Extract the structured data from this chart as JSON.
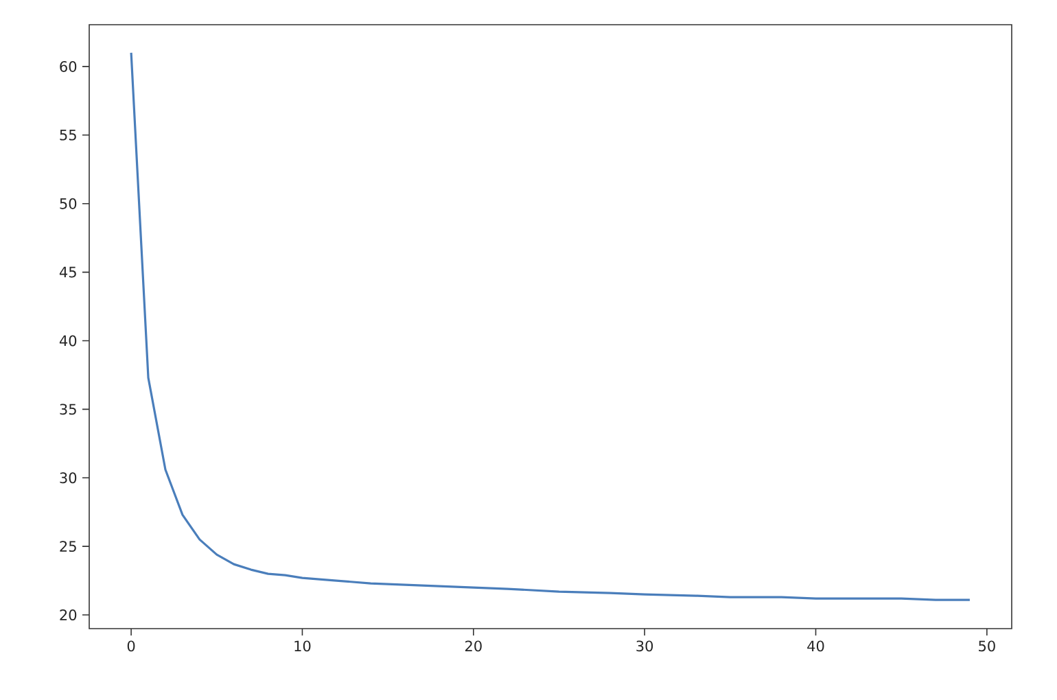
{
  "chart_data": {
    "type": "line",
    "color": "#4a7ebb",
    "x": [
      0,
      1,
      2,
      3,
      4,
      5,
      6,
      7,
      8,
      9,
      10,
      11,
      12,
      14,
      16,
      18,
      20,
      22,
      25,
      28,
      30,
      33,
      35,
      38,
      40,
      43,
      45,
      47,
      49
    ],
    "values": [
      61.0,
      37.3,
      30.6,
      27.3,
      25.5,
      24.4,
      23.7,
      23.3,
      23.0,
      22.9,
      22.7,
      22.6,
      22.5,
      22.3,
      22.2,
      22.1,
      22.0,
      21.9,
      21.7,
      21.6,
      21.5,
      21.4,
      21.3,
      21.3,
      21.2,
      21.2,
      21.2,
      21.1,
      21.1
    ],
    "xlim": [
      -2.45,
      51.45
    ],
    "ylim": [
      19.0,
      63.05
    ],
    "xticks": [
      0,
      10,
      20,
      30,
      40,
      50
    ],
    "yticks": [
      20,
      25,
      30,
      35,
      40,
      45,
      50,
      55,
      60
    ],
    "grid": false,
    "marker": "none",
    "line_style": "solid"
  }
}
